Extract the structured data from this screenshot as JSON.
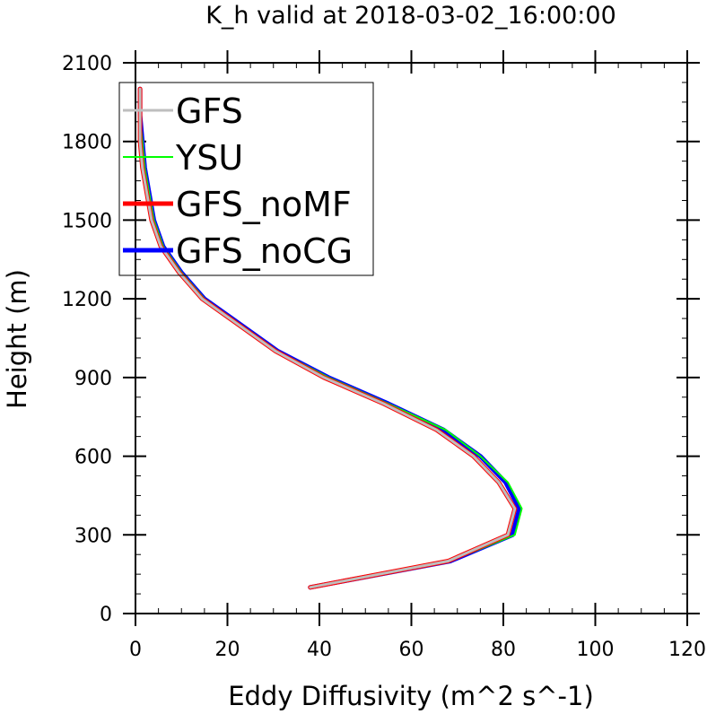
{
  "chart_data": {
    "type": "line",
    "title": "K_h valid at 2018-03-02_16:00:00",
    "xlabel": "Eddy Diffusivity (m^2 s^-1)",
    "ylabel": "Height (m)",
    "xlim": [
      0,
      120
    ],
    "ylim": [
      0,
      2100
    ],
    "xticks": [
      0,
      20,
      40,
      60,
      80,
      100,
      120
    ],
    "yticks": [
      0,
      300,
      600,
      900,
      1200,
      1500,
      1800,
      2100
    ],
    "xticklabels": [
      "0",
      "20",
      "40",
      "60",
      "80",
      "100",
      "120"
    ],
    "yticklabels": [
      "0",
      "300",
      "600",
      "900",
      "1200",
      "1500",
      "1800",
      "2100"
    ],
    "grid": false,
    "legend_position": "top-left",
    "series": [
      {
        "name": "GFS_noCG",
        "color": "#0000ff",
        "width": 5,
        "x": [
          38,
          68.5,
          82,
          83.5,
          80.5,
          75,
          67,
          55,
          42,
          31,
          15,
          10,
          6,
          4,
          3,
          2,
          1.5,
          1,
          1
        ],
        "y": [
          100,
          200,
          300,
          400,
          500,
          600,
          700,
          800,
          900,
          1000,
          1200,
          1300,
          1400,
          1500,
          1600,
          1700,
          1800,
          1900,
          2000
        ]
      },
      {
        "name": "YSU",
        "color": "#00ff00",
        "width": 2,
        "x": [
          38,
          68.5,
          82.5,
          84,
          81,
          75,
          67.5,
          55,
          42,
          31,
          15,
          10,
          6,
          4,
          3,
          2,
          1.5,
          1,
          1
        ],
        "y": [
          100,
          200,
          300,
          400,
          500,
          600,
          700,
          800,
          900,
          1000,
          1200,
          1300,
          1400,
          1500,
          1600,
          1700,
          1800,
          1900,
          2000
        ]
      },
      {
        "name": "GFS_noMF",
        "color": "#ff0000",
        "width": 5,
        "x": [
          38,
          68,
          81,
          82.5,
          79,
          73.5,
          65.5,
          54,
          41,
          30.5,
          14.5,
          9.5,
          5.5,
          3.5,
          2.5,
          1.5,
          1,
          1,
          1
        ],
        "y": [
          100,
          200,
          300,
          400,
          500,
          600,
          700,
          800,
          900,
          1000,
          1200,
          1300,
          1400,
          1500,
          1600,
          1700,
          1800,
          1900,
          2000
        ]
      },
      {
        "name": "GFS",
        "color": "#bebebe",
        "width": 3,
        "x": [
          38,
          68,
          81,
          82.5,
          79,
          73.5,
          65.5,
          54,
          41,
          30.5,
          14.5,
          9.5,
          5.5,
          3.5,
          2.5,
          1.5,
          1,
          1,
          1
        ],
        "y": [
          100,
          200,
          300,
          400,
          500,
          600,
          700,
          800,
          900,
          1000,
          1200,
          1300,
          1400,
          1500,
          1600,
          1700,
          1800,
          1900,
          2000
        ]
      }
    ],
    "legend": [
      {
        "name": "GFS",
        "color": "#bebebe",
        "width": 3
      },
      {
        "name": "YSU",
        "color": "#00ff00",
        "width": 2
      },
      {
        "name": "GFS_noMF",
        "color": "#ff0000",
        "width": 5
      },
      {
        "name": "GFS_noCG",
        "color": "#0000ff",
        "width": 5
      }
    ]
  }
}
